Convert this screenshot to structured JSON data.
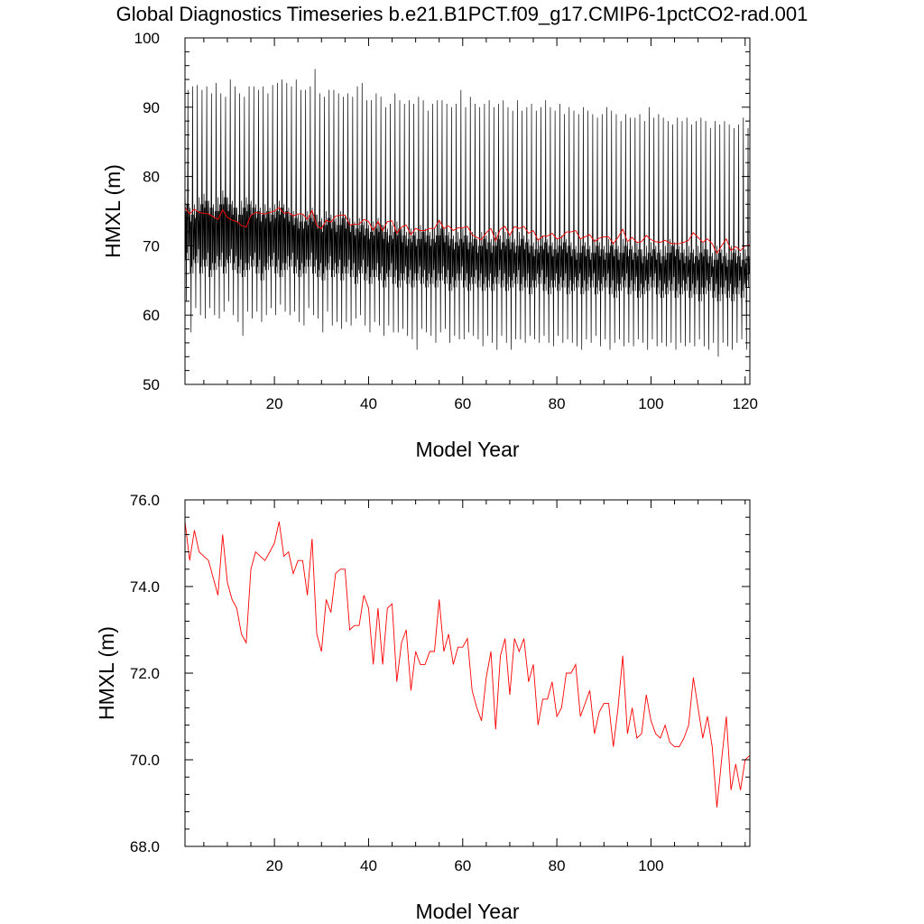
{
  "title": "Global Diagnostics Timeseries b.e21.B1PCT.f09_g17.CMIP6-1pctCO2-rad.001",
  "chart_data": [
    {
      "type": "line",
      "xlabel": "Model Year",
      "ylabel": "HMXL (m)",
      "xlim": [
        1,
        121
      ],
      "ylim": [
        50,
        100
      ],
      "xticks": [
        20,
        40,
        60,
        80,
        100,
        120
      ],
      "yticks": [
        50,
        60,
        70,
        80,
        90,
        100
      ],
      "xtick_labels": [
        "20",
        "40",
        "60",
        "80",
        "100",
        "120"
      ],
      "ytick_labels": [
        "50",
        "60",
        "70",
        "80",
        "90",
        "100"
      ],
      "grid": false,
      "series": [
        {
          "color": "#000000",
          "x_start": 1.0417,
          "x_step": 0.08333,
          "annual_peaks": [
            92.5,
            93.0,
            93.2,
            92.5,
            93.0,
            92.0,
            93.5,
            92.0,
            91.5,
            94.0,
            93.0,
            92.0,
            91.5,
            93.0,
            93.0,
            92.5,
            93.0,
            92.0,
            93.2,
            93.5,
            94.0,
            93.5,
            93.0,
            94.0,
            92.5,
            92.5,
            93.0,
            95.5,
            92.0,
            91.5,
            92.5,
            92.5,
            92.0,
            91.5,
            92.0,
            91.5,
            93.0,
            93.5,
            91.0,
            91.0,
            92.0,
            91.5,
            90.0,
            90.5,
            92.0,
            91.0,
            90.5,
            91.0,
            90.5,
            91.5,
            91.0,
            89.5,
            90.5,
            91.0,
            91.0,
            90.5,
            90.0,
            90.5,
            92.5,
            90.0,
            91.5,
            90.5,
            90.0,
            90.5,
            91.0,
            90.0,
            90.5,
            91.0,
            90.0,
            89.5,
            91.0,
            89.5,
            90.0,
            90.5,
            89.5,
            90.0,
            91.0,
            90.0,
            89.5,
            90.5,
            89.0,
            90.0,
            89.5,
            89.0,
            90.0,
            89.5,
            89.0,
            88.5,
            89.0,
            90.0,
            89.5,
            89.0,
            88.0,
            89.0,
            88.5,
            88.5,
            89.0,
            88.0,
            90.0,
            88.5,
            89.0,
            88.5,
            88.0,
            87.5,
            88.5,
            88.0,
            88.5,
            87.5,
            88.0,
            88.5,
            88.0,
            87.0,
            88.0,
            87.5,
            88.0,
            87.5,
            87.0,
            87.5,
            88.5,
            87.0
          ],
          "annual_troughs": [
            62.0,
            57.5,
            61.0,
            60.0,
            59.5,
            61.0,
            60.0,
            59.5,
            60.5,
            62.0,
            60.0,
            59.0,
            57.0,
            60.5,
            59.5,
            60.5,
            59.0,
            60.0,
            61.0,
            60.0,
            61.5,
            60.5,
            60.0,
            60.5,
            59.0,
            58.5,
            61.0,
            60.0,
            59.5,
            57.5,
            60.5,
            58.5,
            59.0,
            58.0,
            59.0,
            58.5,
            59.5,
            60.0,
            58.5,
            57.5,
            59.0,
            58.5,
            57.0,
            58.5,
            57.5,
            57.5,
            58.0,
            57.0,
            56.5,
            55.0,
            58.0,
            57.5,
            57.0,
            56.0,
            57.5,
            58.0,
            56.0,
            57.0,
            56.5,
            56.5,
            57.5,
            57.0,
            56.5,
            55.5,
            57.0,
            56.0,
            55.0,
            57.0,
            56.0,
            55.0,
            56.5,
            56.5,
            56.0,
            57.0,
            56.5,
            56.0,
            57.0,
            56.0,
            55.5,
            57.0,
            56.0,
            56.5,
            56.0,
            55.5,
            55.0,
            56.5,
            56.0,
            57.0,
            55.5,
            56.5,
            55.0,
            56.0,
            56.5,
            55.5,
            56.0,
            55.5,
            56.5,
            56.0,
            55.0,
            56.5,
            55.5,
            56.0,
            55.5,
            56.0,
            55.0,
            56.0,
            55.5,
            56.0,
            55.5,
            56.5,
            55.5,
            55.0,
            56.0,
            54.0,
            56.0,
            55.5,
            55.0,
            56.0,
            56.5,
            55.0
          ],
          "annual_secondary_highs": [
            77.0,
            75.5,
            76.0,
            77.0,
            77.5,
            76.5,
            76.0,
            77.0,
            78.0,
            77.0,
            76.5,
            75.5,
            76.5,
            77.0,
            76.5,
            76.0,
            75.5,
            76.0,
            75.5,
            76.0,
            76.5,
            76.0,
            75.5,
            75.0,
            74.5,
            74.5,
            75.0,
            75.5,
            74.5,
            74.0,
            75.0,
            74.5,
            74.0,
            75.0,
            74.5,
            74.0,
            73.5,
            74.0,
            73.5,
            73.0,
            73.5,
            74.0,
            73.0,
            72.5,
            73.0,
            73.5,
            72.5,
            72.0,
            72.5,
            72.0,
            73.0,
            72.5,
            72.0,
            72.5,
            73.5,
            72.5,
            72.0,
            71.5,
            72.0,
            72.5,
            71.5,
            72.0,
            71.0,
            72.0,
            71.5,
            71.0,
            72.0,
            71.5,
            72.0,
            71.5,
            71.0,
            72.0,
            71.5,
            71.0,
            70.5,
            71.0,
            71.5,
            71.0,
            70.5,
            71.0,
            71.5,
            71.0,
            70.5,
            70.0,
            71.0,
            70.5,
            70.0,
            71.0,
            70.5,
            70.0,
            71.0,
            70.5,
            70.0,
            71.0,
            70.5,
            70.0,
            70.5,
            69.5,
            70.0,
            70.5,
            70.0,
            69.5,
            70.0,
            71.0,
            70.5,
            70.0,
            69.5,
            70.0,
            69.5,
            70.0,
            70.5,
            69.5,
            69.0,
            70.0,
            69.5,
            69.0,
            70.0,
            69.5,
            69.0,
            69.5
          ],
          "annual_secondary_lows": [
            68.0,
            66.0,
            67.5,
            66.0,
            67.0,
            65.5,
            66.5,
            67.0,
            66.0,
            67.5,
            66.5,
            66.0,
            65.5,
            66.5,
            67.0,
            66.0,
            65.0,
            66.5,
            67.0,
            66.0,
            65.5,
            66.5,
            67.0,
            66.0,
            65.5,
            66.0,
            67.0,
            66.0,
            65.5,
            65.0,
            66.5,
            65.5,
            66.0,
            65.0,
            66.0,
            65.5,
            64.5,
            66.0,
            65.0,
            64.5,
            65.5,
            65.0,
            64.0,
            65.5,
            64.5,
            64.0,
            65.0,
            64.5,
            64.0,
            65.0,
            64.5,
            64.0,
            64.5,
            64.0,
            65.0,
            64.5,
            63.5,
            64.0,
            65.0,
            64.0,
            63.5,
            64.5,
            64.0,
            63.5,
            64.0,
            63.5,
            64.5,
            64.0,
            63.5,
            64.0,
            64.5,
            63.5,
            64.0,
            63.0,
            64.0,
            64.5,
            63.5,
            63.0,
            64.0,
            63.5,
            64.0,
            63.0,
            63.5,
            64.0,
            63.0,
            63.5,
            64.0,
            63.0,
            63.5,
            64.0,
            63.0,
            62.5,
            63.5,
            64.0,
            63.0,
            63.5,
            62.5,
            63.0,
            63.5,
            64.0,
            63.0,
            62.5,
            63.0,
            63.5,
            62.5,
            63.0,
            63.5,
            62.5,
            63.0,
            62.0,
            63.0,
            63.5,
            62.5,
            62.0,
            63.0,
            62.5,
            62.0,
            63.0,
            62.5,
            64.0
          ]
        },
        {
          "color": "#ff0000",
          "x_start": 1,
          "x_step": 1,
          "values": [
            75.5,
            74.6,
            75.3,
            74.8,
            74.7,
            74.6,
            74.2,
            73.8,
            75.2,
            74.1,
            73.7,
            73.5,
            72.9,
            72.7,
            74.4,
            74.8,
            74.7,
            74.6,
            74.8,
            75.0,
            75.5,
            74.7,
            74.8,
            74.3,
            74.6,
            74.6,
            73.8,
            75.1,
            72.9,
            72.5,
            73.7,
            73.4,
            74.3,
            74.4,
            74.4,
            73.0,
            73.1,
            73.1,
            73.8,
            73.5,
            72.2,
            73.5,
            72.2,
            73.5,
            73.6,
            71.8,
            72.7,
            73.0,
            71.6,
            72.5,
            72.2,
            72.2,
            72.5,
            72.5,
            73.7,
            72.5,
            72.9,
            72.2,
            72.6,
            72.6,
            72.8,
            71.6,
            71.2,
            70.9,
            71.9,
            72.5,
            70.7,
            72.4,
            72.8,
            71.5,
            72.8,
            72.5,
            72.8,
            71.8,
            72.2,
            70.8,
            71.4,
            71.4,
            71.8,
            71.0,
            71.2,
            72.0,
            72.0,
            72.2,
            71.0,
            71.3,
            71.6,
            70.6,
            71.1,
            71.3,
            71.3,
            70.3,
            71.2,
            72.4,
            70.6,
            71.2,
            70.5,
            70.6,
            71.5,
            70.9,
            70.6,
            70.5,
            70.8,
            70.4,
            70.3,
            70.3,
            70.5,
            70.8,
            71.9,
            71.2,
            70.5,
            71.0,
            70.3,
            68.9,
            70.0,
            71.0,
            69.3,
            69.9,
            69.3,
            70.0,
            70.1
          ]
        }
      ]
    },
    {
      "type": "line",
      "xlabel": "Model Year",
      "ylabel": "HMXL (m)",
      "xlim": [
        1,
        121
      ],
      "ylim": [
        68,
        76
      ],
      "xticks": [
        20,
        40,
        60,
        80,
        100
      ],
      "yticks": [
        68,
        70,
        72,
        74,
        76
      ],
      "xtick_labels": [
        "20",
        "40",
        "60",
        "80",
        "100"
      ],
      "ytick_labels": [
        "68.0",
        "70.0",
        "72.0",
        "74.0",
        "76.0"
      ],
      "grid": false,
      "series": [
        {
          "color": "#ff0000",
          "x_start": 1,
          "x_step": 1,
          "values": [
            75.5,
            74.6,
            75.3,
            74.8,
            74.7,
            74.6,
            74.2,
            73.8,
            75.2,
            74.1,
            73.7,
            73.5,
            72.9,
            72.7,
            74.4,
            74.8,
            74.7,
            74.6,
            74.8,
            75.0,
            75.5,
            74.7,
            74.8,
            74.3,
            74.6,
            74.6,
            73.8,
            75.1,
            72.9,
            72.5,
            73.7,
            73.4,
            74.3,
            74.4,
            74.4,
            73.0,
            73.1,
            73.1,
            73.8,
            73.5,
            72.2,
            73.5,
            72.2,
            73.5,
            73.6,
            71.8,
            72.7,
            73.0,
            71.6,
            72.5,
            72.2,
            72.2,
            72.5,
            72.5,
            73.7,
            72.5,
            72.9,
            72.2,
            72.6,
            72.6,
            72.8,
            71.6,
            71.2,
            70.9,
            71.9,
            72.5,
            70.7,
            72.4,
            72.8,
            71.5,
            72.8,
            72.5,
            72.8,
            71.8,
            72.2,
            70.8,
            71.4,
            71.4,
            71.8,
            71.0,
            71.2,
            72.0,
            72.0,
            72.2,
            71.0,
            71.3,
            71.6,
            70.6,
            71.1,
            71.3,
            71.3,
            70.3,
            71.2,
            72.4,
            70.6,
            71.2,
            70.5,
            70.6,
            71.5,
            70.9,
            70.6,
            70.5,
            70.8,
            70.4,
            70.3,
            70.3,
            70.5,
            70.8,
            71.9,
            71.2,
            70.5,
            71.0,
            70.3,
            68.9,
            70.0,
            71.0,
            69.3,
            69.9,
            69.3,
            70.0,
            70.1
          ]
        }
      ]
    }
  ]
}
